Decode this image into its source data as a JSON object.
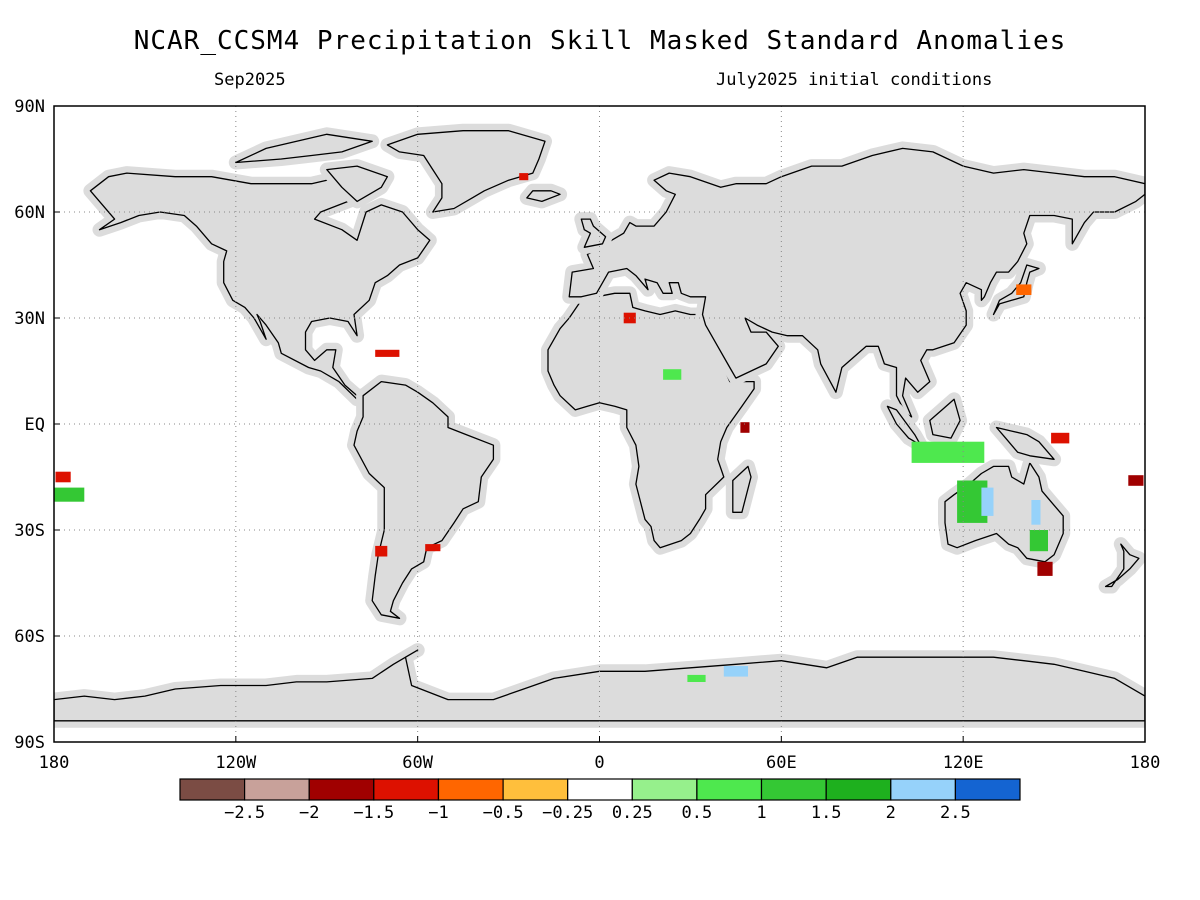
{
  "header": {
    "title": "NCAR_CCSM4 Precipitation Skill Masked Standard Anomalies",
    "valid_month": "Sep2025",
    "initial_conditions": "July2025 initial conditions"
  },
  "map": {
    "projection": "equirectangular",
    "lon_range": [
      -180,
      180
    ],
    "lat_range": [
      -90,
      90
    ],
    "grid": "dotted",
    "land_fill": "#dcdcdc",
    "coast_color": "#000000",
    "lat_labels": [
      {
        "lat": 90,
        "text": "90N"
      },
      {
        "lat": 60,
        "text": "60N"
      },
      {
        "lat": 30,
        "text": "30N"
      },
      {
        "lat": 0,
        "text": "EQ"
      },
      {
        "lat": -30,
        "text": "30S"
      },
      {
        "lat": -60,
        "text": "60S"
      },
      {
        "lat": -90,
        "text": "90S"
      }
    ],
    "lon_labels": [
      {
        "lon": -180,
        "text": "180"
      },
      {
        "lon": -120,
        "text": "120W"
      },
      {
        "lon": -60,
        "text": "60W"
      },
      {
        "lon": 0,
        "text": "0"
      },
      {
        "lon": 60,
        "text": "60E"
      },
      {
        "lon": 120,
        "text": "120E"
      },
      {
        "lon": 180,
        "text": "180"
      }
    ],
    "anomaly_patches": [
      {
        "name": "nw-australia-wet",
        "lon": 123,
        "lat": -22,
        "w": 10,
        "h": 12,
        "level": 1.5
      },
      {
        "name": "nw-australia-very-wet",
        "lon": 128,
        "lat": -22,
        "w": 4,
        "h": 8,
        "level": 2.5
      },
      {
        "name": "ne-australia-very-wet",
        "lon": 144,
        "lat": -25,
        "w": 3,
        "h": 7,
        "level": 2.5
      },
      {
        "name": "east-australia-wet",
        "lon": 145,
        "lat": -33,
        "w": 6,
        "h": 6,
        "level": 1.5
      },
      {
        "name": "indonesia-wet",
        "lon": 115,
        "lat": -8,
        "w": 24,
        "h": 6,
        "level": 1
      },
      {
        "name": "new-guinea-dry",
        "lon": 152,
        "lat": -4,
        "w": 6,
        "h": 3,
        "level": -1
      },
      {
        "name": "se-australia-dry",
        "lon": 147,
        "lat": -41,
        "w": 5,
        "h": 4,
        "level": -1.5
      },
      {
        "name": "central-africa-wet",
        "lon": 24,
        "lat": 14,
        "w": 6,
        "h": 3,
        "level": 1
      },
      {
        "name": "east-africa-dry",
        "lon": 48,
        "lat": -1,
        "w": 3,
        "h": 3,
        "level": -1.5
      },
      {
        "name": "sahara-dry",
        "lon": 10,
        "lat": 30,
        "w": 4,
        "h": 3,
        "level": -1
      },
      {
        "name": "antarctica-very-wet",
        "lon": 45,
        "lat": -70,
        "w": 8,
        "h": 3,
        "level": 2.5
      },
      {
        "name": "antarctica-wet",
        "lon": 32,
        "lat": -72,
        "w": 6,
        "h": 2,
        "level": 1
      },
      {
        "name": "south-pacific-wet",
        "lon": -175,
        "lat": -20,
        "w": 10,
        "h": 4,
        "level": 1.5
      },
      {
        "name": "south-pacific-dry",
        "lon": -177,
        "lat": -15,
        "w": 5,
        "h": 3,
        "level": -1
      },
      {
        "name": "chile-dry",
        "lon": -72,
        "lat": -36,
        "w": 4,
        "h": 3,
        "level": -1
      },
      {
        "name": "uruguay-dry",
        "lon": -55,
        "lat": -35,
        "w": 5,
        "h": 2,
        "level": -1
      },
      {
        "name": "caribbean-dry",
        "lon": -70,
        "lat": 20,
        "w": 8,
        "h": 2,
        "level": -1
      },
      {
        "name": "greenland-dry",
        "lon": -25,
        "lat": 70,
        "w": 3,
        "h": 2,
        "level": -1
      },
      {
        "name": "japan-dry",
        "lon": 140,
        "lat": 38,
        "w": 5,
        "h": 3,
        "level": -0.5
      },
      {
        "name": "pacific-east-dry",
        "lon": 177,
        "lat": -16,
        "w": 5,
        "h": 3,
        "level": -1.5
      }
    ]
  },
  "colorbar": {
    "colors": [
      "#7b4c44",
      "#c8a19a",
      "#a00000",
      "#dd1100",
      "#ff6600",
      "#ffbf3c",
      "#ffffff",
      "#96f08c",
      "#4ee84e",
      "#34c834",
      "#1eb01e",
      "#96d2fa",
      "#1464d2"
    ],
    "labels": [
      "-2.5",
      "-2",
      "-1.5",
      "-1",
      "-0.5",
      "-0.25",
      "0.25",
      "0.5",
      "1",
      "1.5",
      "2",
      "2.5"
    ]
  }
}
